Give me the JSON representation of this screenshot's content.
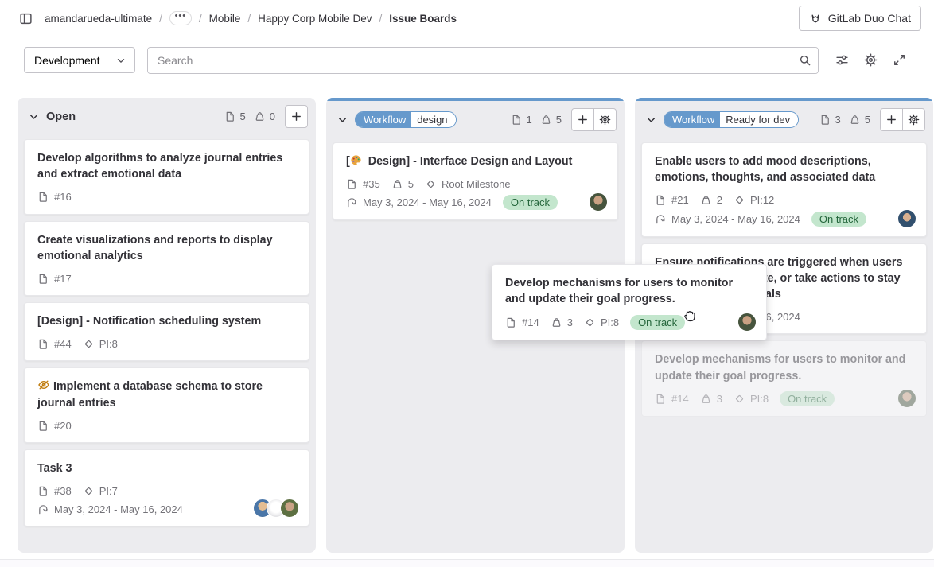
{
  "breadcrumb": {
    "project": "amandarueda-ultimate",
    "ellipsis": "•••",
    "separator": "/",
    "items": [
      "Mobile",
      "Happy Corp Mobile Dev"
    ],
    "current": "Issue Boards"
  },
  "topbar": {
    "duo_chat_label": "GitLab Duo Chat"
  },
  "filterbar": {
    "board_dropdown_value": "Development",
    "search_placeholder": "Search"
  },
  "colors": {
    "column_accent": "#6699cc",
    "scoped_label_bg": "#6699cc",
    "status_on_track_bg": "#c3e6cd",
    "status_on_track_text": "#24663b",
    "confidential_icon": "#c17d10"
  },
  "board": {
    "columns": [
      {
        "title": "Open",
        "issue_count": "5",
        "total_weight": "0",
        "accent": null,
        "has_settings": false,
        "cards": [
          {
            "title": "Develop algorithms to analyze journal entries and extract emotional data",
            "ref": "#16"
          },
          {
            "title": "Create visualizations and reports to display emotional analytics",
            "ref": "#17"
          },
          {
            "title": "[Design] - Notification scheduling system",
            "ref": "#44",
            "milestone": "PI:8"
          },
          {
            "title": "Implement a database schema to store journal entries",
            "ref": "#20",
            "confidential": true
          },
          {
            "title": "Task 3",
            "ref": "#38",
            "milestone": "PI:7",
            "dates": "May 3, 2024 - May 16, 2024",
            "avatars": [
              "av-photo-blue",
              "av-sketch",
              "av-photo-green"
            ]
          }
        ]
      },
      {
        "label_scope": "Workflow",
        "label_value": "design",
        "issue_count": "1",
        "total_weight": "5",
        "accent": "#6699cc",
        "has_settings": true,
        "cards": [
          {
            "title": "[🎨 Design] - Interface Design and Layout",
            "ref": "#35",
            "weight": "5",
            "milestone": "Root Milestone",
            "dates": "May 3, 2024 - May 16, 2024",
            "status": "On track",
            "avatars": [
              "av-photo-woman"
            ]
          }
        ]
      },
      {
        "label_scope": "Workflow",
        "label_value": "Ready for dev",
        "issue_count": "3",
        "total_weight": "5",
        "accent": "#6699cc",
        "has_settings": true,
        "cards": [
          {
            "title": "Enable users to add mood descriptions, emotions, thoughts, and associated data",
            "ref": "#21",
            "weight": "2",
            "milestone": "PI:12",
            "dates": "May 3, 2024 - May 16, 2024",
            "status": "On track",
            "avatars": [
              "av-photo-man"
            ]
          },
          {
            "title": "Ensure notifications are triggered when users should review, update, or take actions to stay aligned with their goals",
            "dates": "May 3, 2024 - May 16, 2024"
          },
          {
            "title": "Develop mechanisms for users to monitor and update their goal progress.",
            "ref": "#14",
            "weight": "3",
            "milestone": "PI:8",
            "status": "On track",
            "avatars": [
              "av-photo-woman"
            ],
            "ghost": true
          }
        ]
      }
    ]
  },
  "drag_card": {
    "title": "Develop mechanisms for users to monitor and update their goal progress.",
    "ref": "#14",
    "weight": "3",
    "milestone": "PI:8",
    "status": "On track",
    "avatar": "av-photo-woman"
  }
}
